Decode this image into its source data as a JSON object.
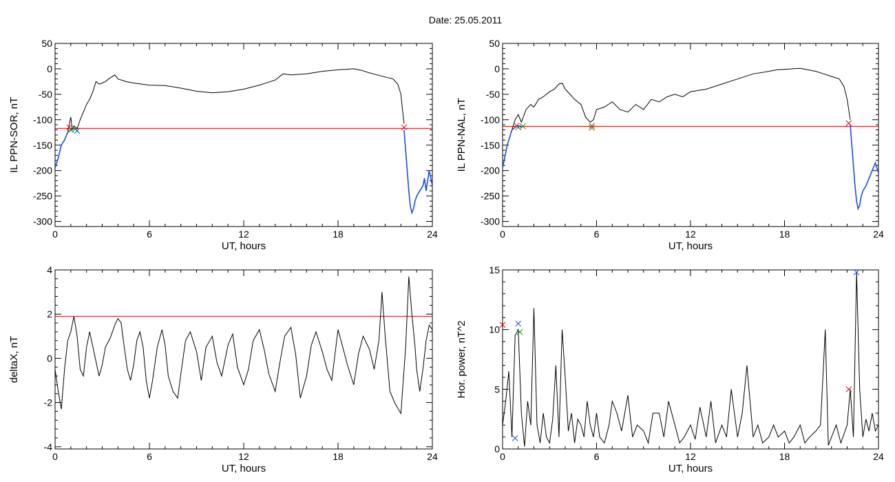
{
  "figure": {
    "title": "Date:  25.05.2011"
  },
  "chart_data": [
    {
      "id": "ppn-sor",
      "type": "line",
      "title": "",
      "xlabel": "UT, hours",
      "ylabel": "IL PPN-SOR, nT",
      "xlim": [
        0,
        24
      ],
      "ylim": [
        -310,
        50
      ],
      "xticks": [
        0,
        6,
        12,
        18,
        24
      ],
      "yticks": [
        50,
        0,
        -50,
        -100,
        -150,
        -200,
        -250,
        -300
      ],
      "threshold": {
        "y": -117,
        "color": "#e00000"
      },
      "series": [
        {
          "color": "#000000",
          "x": [
            0,
            0.2,
            0.4,
            0.6,
            0.8,
            0.9,
            1.0,
            1.1,
            1.2,
            1.4,
            1.6,
            1.8,
            2.0,
            2.2,
            2.4,
            2.6,
            2.8,
            3.0,
            3.2,
            3.5,
            3.8,
            4.0,
            4.5,
            5.0,
            5.5,
            6.0,
            7.0,
            8.0,
            9.0,
            10.0,
            11.0,
            12.0,
            13.0,
            14.0,
            14.5,
            15.0,
            16.0,
            17.0,
            18.0,
            18.5,
            19.0,
            19.5,
            20.0,
            20.5,
            21.0,
            21.5,
            21.8,
            22.0,
            22.1,
            22.2
          ],
          "y": [
            -195,
            -175,
            -150,
            -140,
            -125,
            -110,
            -95,
            -120,
            -112,
            -118,
            -100,
            -85,
            -70,
            -60,
            -45,
            -25,
            -30,
            -28,
            -25,
            -18,
            -12,
            -20,
            -25,
            -28,
            -30,
            -32,
            -33,
            -38,
            -44,
            -47,
            -45,
            -40,
            -32,
            -22,
            -10,
            -12,
            -10,
            -5,
            -2,
            -1,
            0,
            -3,
            -8,
            -12,
            -16,
            -20,
            -30,
            -50,
            -80,
            -108
          ]
        },
        {
          "color": "#1a4fd8",
          "x": [
            0,
            0.2,
            0.4,
            0.6,
            0.8,
            1.0,
            1.2
          ],
          "y": [
            -195,
            -175,
            -150,
            -140,
            -125,
            -120,
            -118
          ]
        },
        {
          "color": "#1a4fd8",
          "x": [
            22.2,
            22.3,
            22.4,
            22.5,
            22.6,
            22.7,
            22.8,
            22.9,
            23.0,
            23.2,
            23.4,
            23.5,
            23.6,
            23.8,
            24.0
          ],
          "y": [
            -120,
            -160,
            -200,
            -240,
            -270,
            -283,
            -275,
            -260,
            -250,
            -240,
            -230,
            -215,
            -240,
            -200,
            -230
          ]
        }
      ],
      "markers": [
        {
          "x": 0.9,
          "y": -115,
          "color": "#e00000"
        },
        {
          "x": 1.0,
          "y": -120,
          "color": "#1a8f1a"
        },
        {
          "x": 1.3,
          "y": -118,
          "color": "#1a8f1a"
        },
        {
          "x": 1.4,
          "y": -122,
          "color": "#1a4fd8"
        },
        {
          "x": 22.2,
          "y": -115,
          "color": "#e00000"
        }
      ]
    },
    {
      "id": "ppn-nal",
      "type": "line",
      "title": "",
      "xlabel": "UT, hours",
      "ylabel": "IL PPN-NAL, nT",
      "xlim": [
        0,
        24
      ],
      "ylim": [
        -310,
        50
      ],
      "xticks": [
        0,
        6,
        12,
        18,
        24
      ],
      "yticks": [
        50,
        0,
        -50,
        -100,
        -150,
        -200,
        -250,
        -300
      ],
      "threshold": {
        "y": -113,
        "color": "#e00000"
      },
      "series": [
        {
          "color": "#000000",
          "x": [
            0,
            0.3,
            0.6,
            0.8,
            1.0,
            1.2,
            1.5,
            1.8,
            2.0,
            2.3,
            2.6,
            3.0,
            3.3,
            3.6,
            3.8,
            4.0,
            4.3,
            4.6,
            5.0,
            5.3,
            5.6,
            5.8,
            6.0,
            6.5,
            7.0,
            7.5,
            8.0,
            8.5,
            9.0,
            9.5,
            10.0,
            10.5,
            11.0,
            11.5,
            12.0,
            13.0,
            14.0,
            15.0,
            16.0,
            17.0,
            17.5,
            18.0,
            18.5,
            19.0,
            19.5,
            20.0,
            20.5,
            21.0,
            21.5,
            21.8,
            22.0,
            22.2
          ],
          "y": [
            -195,
            -150,
            -120,
            -100,
            -90,
            -105,
            -80,
            -70,
            -75,
            -60,
            -55,
            -45,
            -40,
            -30,
            -28,
            -40,
            -50,
            -60,
            -70,
            -95,
            -105,
            -100,
            -80,
            -75,
            -65,
            -80,
            -85,
            -70,
            -80,
            -60,
            -65,
            -55,
            -50,
            -55,
            -45,
            -40,
            -30,
            -20,
            -10,
            -5,
            -2,
            -1,
            0,
            1,
            -2,
            -5,
            -10,
            -15,
            -20,
            -35,
            -60,
            -100
          ]
        },
        {
          "color": "#1a4fd8",
          "x": [
            0,
            0.3,
            0.6,
            0.8,
            1.0,
            1.2
          ],
          "y": [
            -195,
            -150,
            -120,
            -115,
            -112,
            -115
          ]
        },
        {
          "color": "#1a4fd8",
          "x": [
            22.2,
            22.3,
            22.4,
            22.5,
            22.6,
            22.7,
            22.8,
            22.9,
            23.0,
            23.2,
            23.4,
            23.6,
            23.8,
            24.0
          ],
          "y": [
            -110,
            -150,
            -190,
            -230,
            -260,
            -275,
            -268,
            -250,
            -240,
            -230,
            -215,
            -200,
            -185,
            -205
          ]
        }
      ],
      "markers": [
        {
          "x": 0.9,
          "y": -112,
          "color": "#e00000"
        },
        {
          "x": 1.0,
          "y": -115,
          "color": "#1a8f1a"
        },
        {
          "x": 1.3,
          "y": -113,
          "color": "#1a8f1a"
        },
        {
          "x": 5.7,
          "y": -112,
          "color": "#e00000"
        },
        {
          "x": 5.7,
          "y": -116,
          "color": "#1a8f1a"
        },
        {
          "x": 22.1,
          "y": -107,
          "color": "#e00000"
        }
      ]
    },
    {
      "id": "deltax",
      "type": "line",
      "title": "",
      "xlabel": "UT, hours",
      "ylabel": "deltaX, nT",
      "xlim": [
        0,
        24
      ],
      "ylim": [
        -4.1,
        4
      ],
      "xticks": [
        0,
        6,
        12,
        18,
        24
      ],
      "yticks": [
        4,
        2,
        0,
        -2,
        -4
      ],
      "threshold": {
        "y": 1.9,
        "color": "#e00000"
      },
      "series": [
        {
          "color": "#000000",
          "x": [
            0,
            0.2,
            0.4,
            0.6,
            0.8,
            1.0,
            1.2,
            1.4,
            1.6,
            1.8,
            2.0,
            2.2,
            2.5,
            2.8,
            3.0,
            3.2,
            3.5,
            3.8,
            4.0,
            4.2,
            4.4,
            4.6,
            4.8,
            5.0,
            5.2,
            5.4,
            5.6,
            5.8,
            6.0,
            6.2,
            6.5,
            6.8,
            7.0,
            7.2,
            7.5,
            7.8,
            8.0,
            8.3,
            8.6,
            9.0,
            9.3,
            9.6,
            10.0,
            10.3,
            10.6,
            11.0,
            11.3,
            11.6,
            12.0,
            12.3,
            12.6,
            13.0,
            13.3,
            13.6,
            14.0,
            14.3,
            14.6,
            15.0,
            15.3,
            15.6,
            16.0,
            16.3,
            16.6,
            17.0,
            17.3,
            17.6,
            18.0,
            18.3,
            18.6,
            19.0,
            19.3,
            19.6,
            20.0,
            20.3,
            20.6,
            20.8,
            21.0,
            21.3,
            21.6,
            22.0,
            22.3,
            22.5,
            22.7,
            22.9,
            23.0,
            23.2,
            23.4,
            23.6,
            23.8,
            24.0
          ],
          "y": [
            -0.5,
            -1.5,
            -2.3,
            -0.5,
            0.8,
            1.2,
            1.9,
            1.0,
            -0.5,
            -0.8,
            0.5,
            1.2,
            0.2,
            -0.8,
            -0.3,
            0.5,
            0.9,
            1.5,
            1.8,
            1.6,
            0.5,
            -0.5,
            -1.0,
            -0.3,
            0.8,
            1.2,
            0.5,
            -1.0,
            -1.8,
            -1.0,
            0.5,
            1.3,
            0.6,
            -0.8,
            -1.5,
            -1.8,
            -0.7,
            0.8,
            1.2,
            0.3,
            -1.0,
            0.5,
            1.0,
            -0.2,
            -0.8,
            0.6,
            1.1,
            -0.4,
            -1.2,
            -0.5,
            0.8,
            1.3,
            0.4,
            -0.7,
            -1.5,
            -0.2,
            1.0,
            1.4,
            0.2,
            -1.8,
            -0.8,
            0.6,
            1.2,
            0.3,
            -0.5,
            -1.0,
            1.3,
            0.5,
            -0.3,
            -1.2,
            0.2,
            1.0,
            0.4,
            -0.5,
            0.8,
            3.0,
            1.0,
            -1.5,
            -2.0,
            -2.5,
            0.5,
            3.7,
            2.0,
            0.5,
            -0.5,
            -1.5,
            -0.5,
            0.8,
            1.5,
            1.3
          ]
        }
      ],
      "markers": []
    },
    {
      "id": "hor-power",
      "type": "line",
      "title": "",
      "xlabel": "UT, hours",
      "ylabel": "Hor. power, nT^2",
      "xlim": [
        0,
        24
      ],
      "ylim": [
        0,
        15
      ],
      "xticks": [
        0,
        6,
        12,
        18,
        24
      ],
      "yticks": [
        15,
        10,
        5,
        0
      ],
      "threshold": null,
      "series": [
        {
          "color": "#000000",
          "x": [
            0,
            0.2,
            0.4,
            0.6,
            0.8,
            1.0,
            1.2,
            1.4,
            1.6,
            1.8,
            2.0,
            2.2,
            2.4,
            2.6,
            2.8,
            3.0,
            3.2,
            3.4,
            3.6,
            3.8,
            4.0,
            4.2,
            4.4,
            4.6,
            4.8,
            5.0,
            5.2,
            5.4,
            5.6,
            5.8,
            6.0,
            6.2,
            6.5,
            6.8,
            7.0,
            7.3,
            7.6,
            8.0,
            8.3,
            8.6,
            9.0,
            9.3,
            9.6,
            10.0,
            10.3,
            10.6,
            11.0,
            11.3,
            11.6,
            12.0,
            12.3,
            12.6,
            13.0,
            13.3,
            13.6,
            14.0,
            14.3,
            14.6,
            15.0,
            15.3,
            15.6,
            16.0,
            16.3,
            16.6,
            17.0,
            17.3,
            17.6,
            18.0,
            18.3,
            18.6,
            19.0,
            19.3,
            19.6,
            20.0,
            20.3,
            20.6,
            20.8,
            21.0,
            21.3,
            21.6,
            22.0,
            22.2,
            22.4,
            22.6,
            22.8,
            23.0,
            23.2,
            23.4,
            23.6,
            23.8,
            24.0
          ],
          "y": [
            2.0,
            4.0,
            6.5,
            1.0,
            9.5,
            10.0,
            3.0,
            0.2,
            4.0,
            2.0,
            11.8,
            2.0,
            0.5,
            3.0,
            1.0,
            0.5,
            2.5,
            7.0,
            1.0,
            10.0,
            6.0,
            1.5,
            3.0,
            0.5,
            2.5,
            2.0,
            1.0,
            4.0,
            2.0,
            1.0,
            3.0,
            1.0,
            0.5,
            2.0,
            4.0,
            3.0,
            1.5,
            4.5,
            1.0,
            2.0,
            1.5,
            0.5,
            3.0,
            3.0,
            1.0,
            4.0,
            2.0,
            0.5,
            1.0,
            2.0,
            0.8,
            3.5,
            1.0,
            4.0,
            0.5,
            2.0,
            1.0,
            5.0,
            1.0,
            3.0,
            7.0,
            1.0,
            2.0,
            0.5,
            1.0,
            2.0,
            1.0,
            1.5,
            0.5,
            1.0,
            2.0,
            0.5,
            1.0,
            1.5,
            2.0,
            10.0,
            0.3,
            1.0,
            2.0,
            0.5,
            2.0,
            5.0,
            1.0,
            14.8,
            5.0,
            1.0,
            2.5,
            1.5,
            3.0,
            1.5,
            2.0
          ]
        }
      ],
      "markers": [
        {
          "x": 0.0,
          "y": 10.4,
          "color": "#e00000"
        },
        {
          "x": 0.8,
          "y": 0.9,
          "color": "#1a4fd8"
        },
        {
          "x": 1.0,
          "y": 10.5,
          "color": "#1a4fd8"
        },
        {
          "x": 1.1,
          "y": 9.8,
          "color": "#1a8f1a"
        },
        {
          "x": 22.1,
          "y": 5.0,
          "color": "#e00000"
        },
        {
          "x": 22.6,
          "y": 14.8,
          "color": "#1a4fd8"
        }
      ]
    }
  ]
}
